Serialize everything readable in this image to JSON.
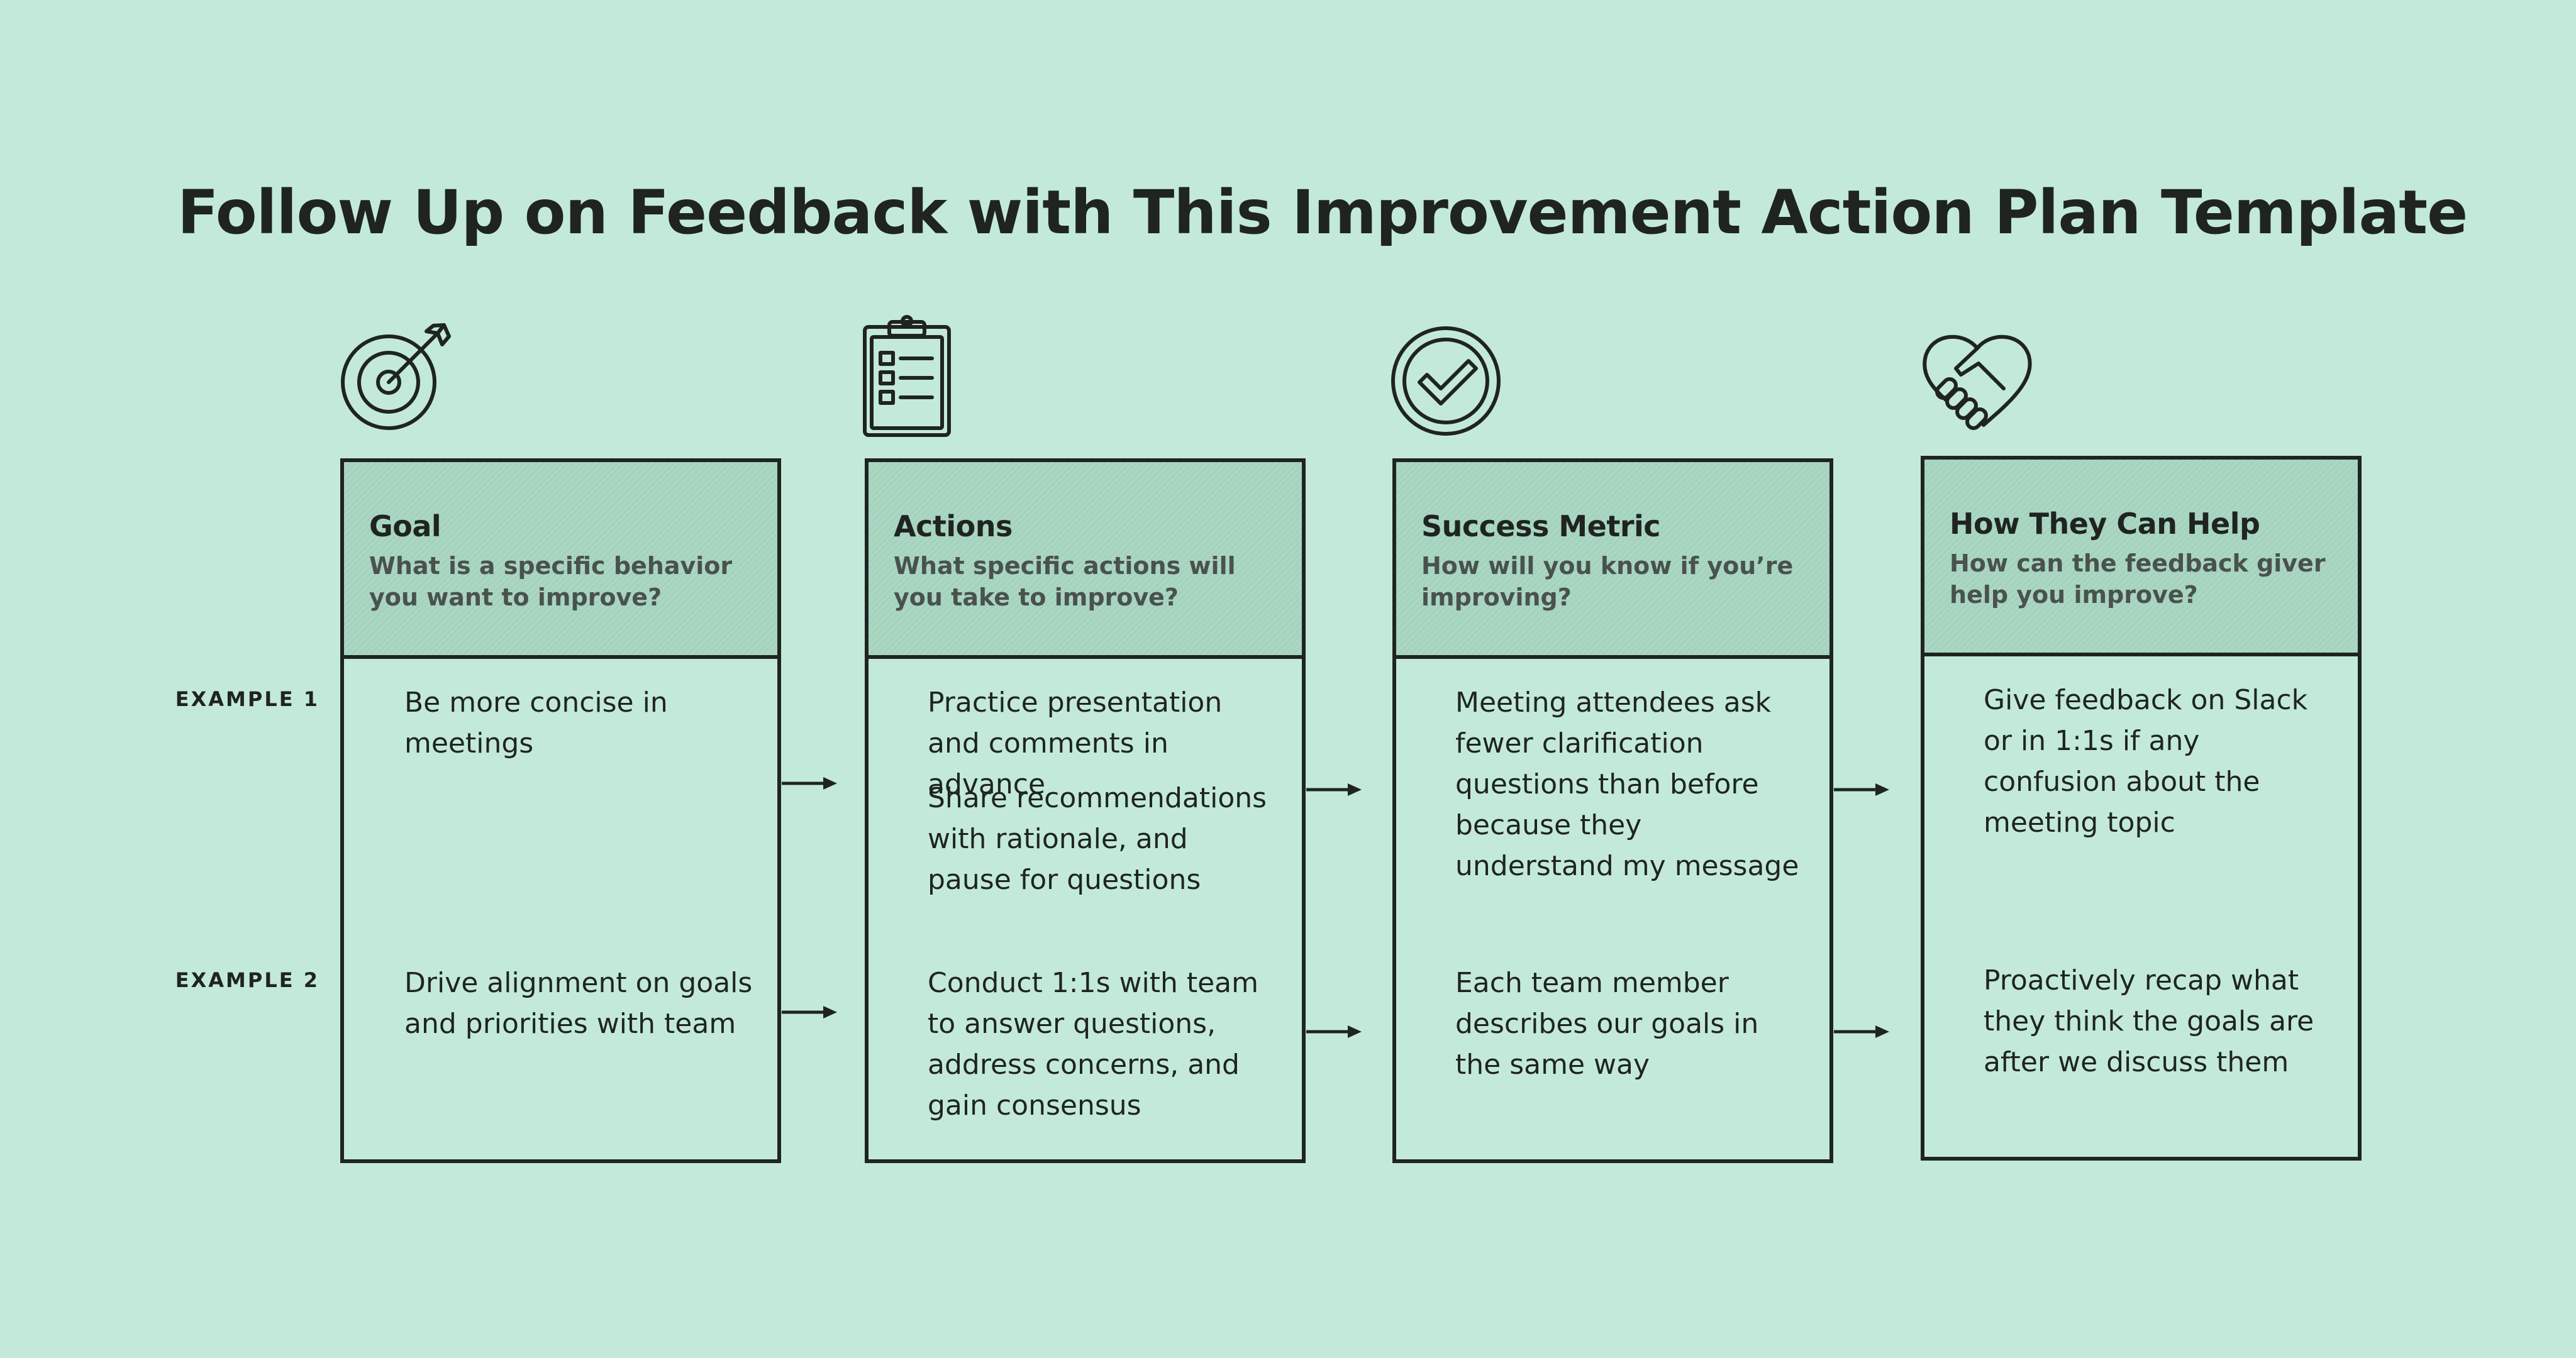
{
  "title": "Follow Up on Feedback with This Improvement Action Plan Template",
  "examples": [
    "EXAMPLE 1",
    "EXAMPLE 2"
  ],
  "columns": [
    {
      "title": "Goal",
      "subtitle": "What is a specific behavior you want to improve?",
      "icon": "target-icon",
      "ex1": [
        "Be more concise in meetings"
      ],
      "ex2": [
        "Drive alignment on goals and priorities with team"
      ]
    },
    {
      "title": "Actions",
      "subtitle": "What specific actions will you take to improve?",
      "icon": "clipboard-checklist-icon",
      "ex1": [
        "Practice presentation and comments in advance",
        "Share recommendations with rationale, and pause for questions"
      ],
      "ex2": [
        "Conduct 1:1s with team to answer questions, address concerns, and gain consensus"
      ]
    },
    {
      "title": "Success Metric",
      "subtitle": "How will you know if you’re improving?",
      "icon": "checkmark-circle-icon",
      "ex1": [
        "Meeting attendees ask fewer clarification questions than before because they understand my message"
      ],
      "ex2": [
        "Each team member describes our goals in the same way"
      ]
    },
    {
      "title": "How They Can Help",
      "subtitle": "How can the feedback giver help you improve?",
      "icon": "heart-handshake-icon",
      "ex1": [
        "Give feedback on Slack or in 1:1s if any confusion about the meeting topic"
      ],
      "ex2": [
        "Proactively recap what they think the goals are after we discuss them"
      ]
    }
  ],
  "colors": {
    "background": "#c3ead8",
    "header": "#a9d7c2",
    "ink": "#1f2421"
  }
}
